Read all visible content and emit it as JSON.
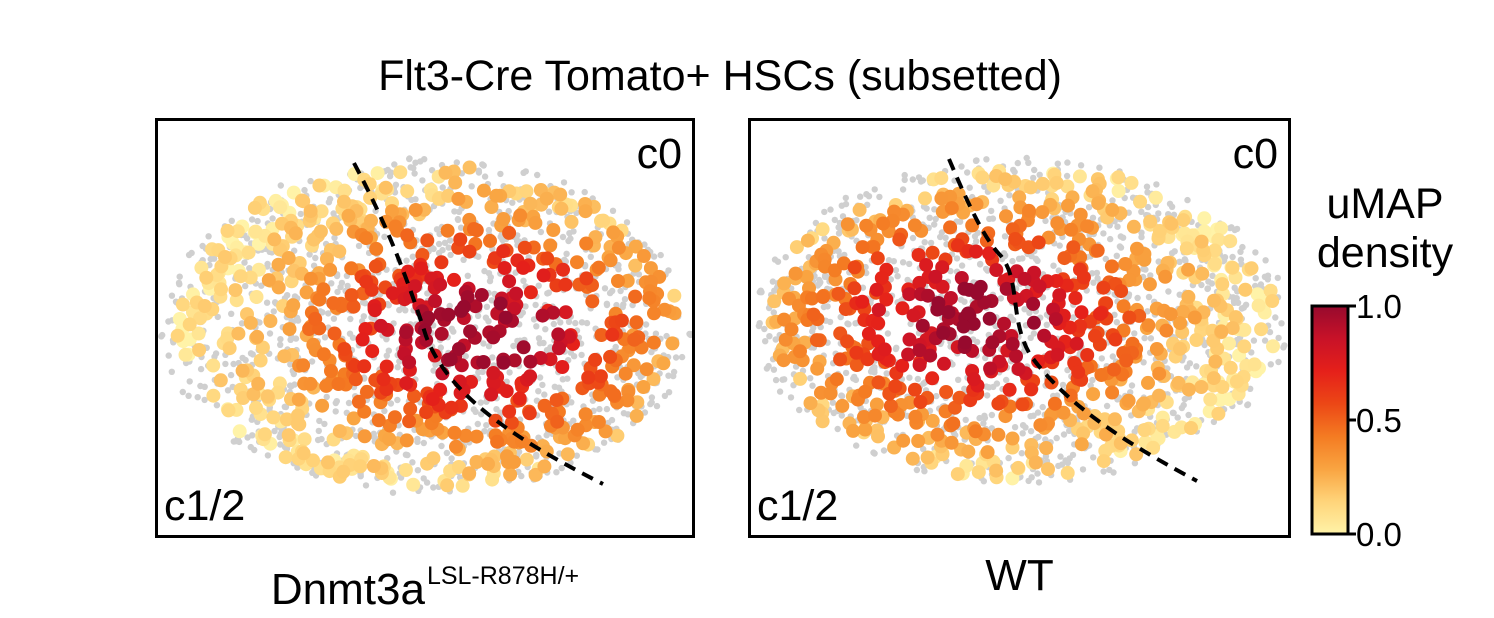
{
  "title": "Flt3-Cre Tomato+ HSCs (subsetted)",
  "panels": [
    {
      "label_main": "Dnmt3a",
      "label_sup": "LSL-R878H/+",
      "cluster_top": "c0",
      "cluster_bottom": "c1/2"
    },
    {
      "label_main": "WT",
      "label_sup": "",
      "cluster_top": "c0",
      "cluster_bottom": "c1/2"
    }
  ],
  "colorbar": {
    "title": "uMAP density",
    "ticks": [
      "1.0",
      "0.5",
      "0.0"
    ],
    "tick_values": [
      1.0,
      0.5,
      0.0
    ],
    "colors": [
      "#fff3a8",
      "#ffd47a",
      "#f9a441",
      "#f47b22",
      "#ec4716",
      "#e5201a",
      "#c81228",
      "#970a2e"
    ],
    "background_point_color": "#cfcfcf"
  },
  "chart_data": {
    "type": "scatter",
    "title": "Flt3-Cre Tomato+ HSCs (subsetted)",
    "color_scale": {
      "label": "uMAP density",
      "range": [
        0.0,
        1.0
      ]
    },
    "series": [
      {
        "panel": "Dnmt3a LSL-R878H/+",
        "density_peak": 1.0,
        "peak_cluster": "c0",
        "boundary": "dashed line separating c0 (top-right) and c1/2 (bottom-left)"
      },
      {
        "panel": "WT",
        "density_peak": 1.0,
        "peak_cluster": "c1/2",
        "boundary": "dashed line separating c0 (top-right) and c1/2 (bottom-left)"
      }
    ]
  }
}
